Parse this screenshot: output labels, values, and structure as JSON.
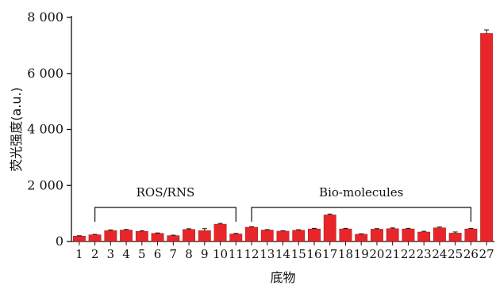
{
  "chart_data": {
    "type": "bar",
    "categories": [
      "1",
      "2",
      "3",
      "4",
      "5",
      "6",
      "7",
      "8",
      "9",
      "10",
      "11",
      "12",
      "13",
      "14",
      "15",
      "16",
      "17",
      "18",
      "19",
      "20",
      "21",
      "22",
      "23",
      "24",
      "25",
      "26",
      "27"
    ],
    "values": [
      190,
      240,
      390,
      410,
      360,
      290,
      210,
      430,
      390,
      620,
      270,
      510,
      410,
      370,
      400,
      450,
      950,
      450,
      260,
      440,
      460,
      450,
      340,
      490,
      300,
      450,
      7430
    ],
    "errors": [
      15,
      15,
      25,
      20,
      25,
      15,
      15,
      25,
      70,
      25,
      20,
      20,
      15,
      15,
      20,
      20,
      30,
      20,
      15,
      20,
      25,
      20,
      25,
      25,
      40,
      20,
      120
    ],
    "xlabel": "底物",
    "ylabel": "荧光强度(a.u.)",
    "ylim": [
      0,
      8000
    ],
    "yticks": [
      0,
      2000,
      4000,
      6000,
      8000
    ],
    "ytick_labels": [
      "0",
      "2 000",
      "4 000",
      "6 000",
      "8 000"
    ],
    "groups": [
      {
        "label": "ROS/RNS",
        "from": 2,
        "to": 11
      },
      {
        "label": "Bio-molecules",
        "from": 12,
        "to": 26
      }
    ],
    "colors": {
      "bar": "#e8262a",
      "bar_edge": "#7a1010",
      "axis": "#111111"
    },
    "grid": false,
    "legend": "none"
  }
}
